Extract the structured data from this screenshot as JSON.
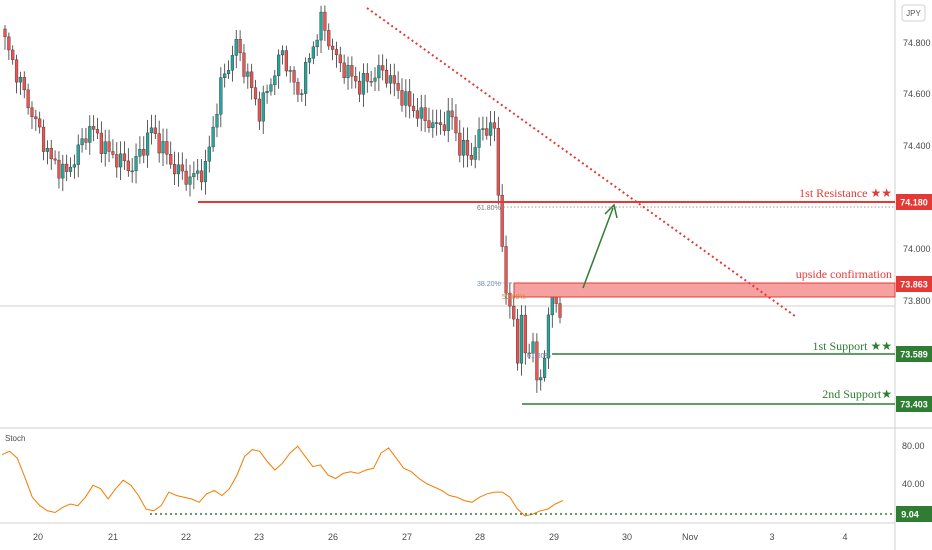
{
  "currency": "JPY",
  "colors": {
    "up": "#26a69a",
    "down": "#ef5350",
    "resistance": "#e53935",
    "support": "#2e7d32",
    "trendline": "#e53935",
    "stoch": "#f57c00",
    "zone_fill": "#f6a0a0",
    "grid": "#e6e6e6",
    "axis_text": "#4a4a4a"
  },
  "chart_data": [
    {
      "type": "candlestick",
      "instrument": "JPY",
      "ylim": [
        73.3,
        74.95
      ],
      "y_ticks": [
        "74.800",
        "74.600",
        "74.400",
        "74.000",
        "73.800"
      ],
      "x_ticks": [
        "20",
        "21",
        "22",
        "23",
        "26",
        "27",
        "28",
        "29",
        "30",
        "Nov",
        "3",
        "4"
      ],
      "levels": [
        {
          "name": "1st Resistance ★★",
          "value": 74.18,
          "value_label": "74.180",
          "kind": "resistance"
        },
        {
          "name": "upside confirmation",
          "value": 73.863,
          "value_label": "73.863",
          "kind": "resistance"
        },
        {
          "name": "1st Support ★★",
          "value": 73.589,
          "value_label": "73.589",
          "kind": "support"
        },
        {
          "name": "2nd Support★",
          "value": 73.403,
          "value_label": "73.403",
          "kind": "support"
        }
      ],
      "fib_labels": [
        "61.80%",
        "38.20%",
        "50.00%",
        "61.80%"
      ],
      "trendline": {
        "from": {
          "date": "Oct 26",
          "price": 74.94
        },
        "to": {
          "date": "Nov 3",
          "price": 73.73
        }
      },
      "projection_arrow": {
        "from": 73.8,
        "to": 74.16
      },
      "summary": {
        "start_close": 74.79,
        "high": 74.92,
        "low": 73.43,
        "last_close": 73.75
      }
    },
    {
      "type": "line",
      "title": "Stoch",
      "ylim": [
        0,
        100
      ],
      "y_ticks": [
        "80.00",
        "40.00"
      ],
      "level": {
        "value": 9.04,
        "value_label": "9.04"
      },
      "values": [
        78,
        82,
        74,
        52,
        28,
        18,
        12,
        10,
        16,
        20,
        18,
        28,
        42,
        38,
        26,
        38,
        48,
        42,
        30,
        14,
        12,
        18,
        34,
        30,
        28,
        26,
        22,
        32,
        36,
        30,
        38,
        54,
        76,
        84,
        82,
        70,
        60,
        68,
        80,
        88,
        76,
        64,
        66,
        54,
        50,
        56,
        58,
        56,
        60,
        62,
        80,
        86,
        74,
        62,
        58,
        50,
        44,
        40,
        36,
        30,
        28,
        24,
        22,
        28,
        32,
        34,
        34,
        28,
        14,
        6,
        8,
        12,
        14,
        20,
        24
      ]
    }
  ]
}
